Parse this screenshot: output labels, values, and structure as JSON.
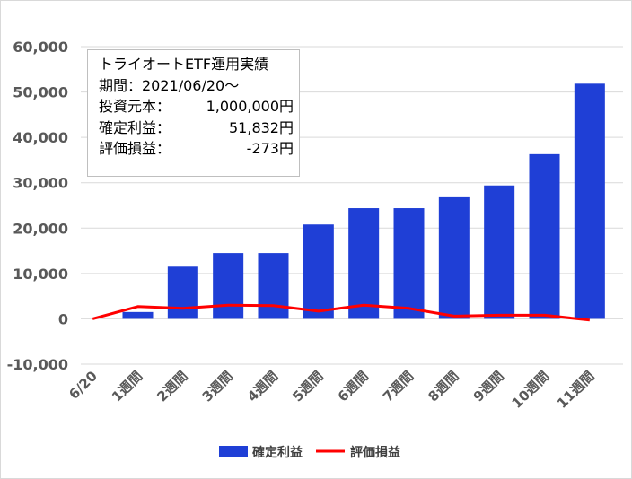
{
  "chart_data": {
    "type": "bar+line",
    "categories": [
      "6/20",
      "1週間",
      "2週間",
      "3週間",
      "4週間",
      "5週間",
      "6週間",
      "7週間",
      "8週間",
      "9週間",
      "10週間",
      "11週間"
    ],
    "series": [
      {
        "name": "確定利益",
        "type": "bar",
        "color": "#1f3fd6",
        "values": [
          0,
          1500,
          11500,
          14500,
          14500,
          20800,
          24400,
          24400,
          26800,
          29400,
          36300,
          51832
        ]
      },
      {
        "name": "評価損益",
        "type": "line",
        "color": "#ff0000",
        "values": [
          0,
          2700,
          2300,
          3000,
          2900,
          1700,
          3000,
          2300,
          600,
          800,
          800,
          -273
        ]
      }
    ],
    "ylim": [
      -10000,
      60000
    ],
    "yticks": [
      60000,
      50000,
      40000,
      30000,
      20000,
      10000,
      0,
      -10000
    ],
    "ytick_labels": [
      "60,000",
      "50,000",
      "40,000",
      "30,000",
      "20,000",
      "10,000",
      "0",
      "-10,000"
    ],
    "grid": true,
    "legend_position": "bottom"
  },
  "info_box": {
    "title": "トライオートETF運用実績",
    "period": "期間：2021/06/20～",
    "rows": [
      {
        "label": "投資元本：",
        "value": "1,000,000円"
      },
      {
        "label": "確定利益：",
        "value": "51,832円"
      },
      {
        "label": "評価損益：",
        "value": "-273円"
      }
    ]
  },
  "legend": {
    "bar_label": "確定利益",
    "line_label": "評価損益"
  }
}
